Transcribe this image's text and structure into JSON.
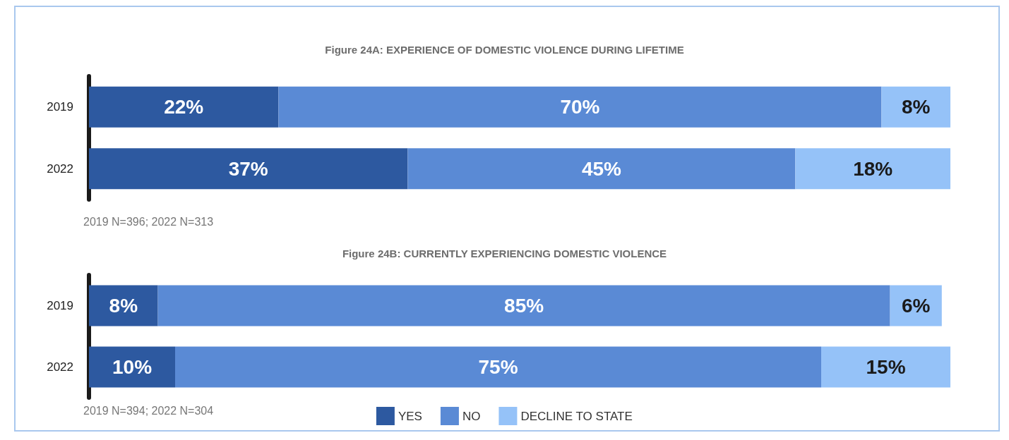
{
  "chart_data": [
    {
      "type": "bar",
      "orientation": "horizontal",
      "stacked": true,
      "title": "Figure 24A: EXPERIENCE OF DOMESTIC VIOLENCE DURING LIFETIME",
      "categories": [
        "2019",
        "2022"
      ],
      "series": [
        {
          "color": "#2d59a0",
          "values": [
            22,
            37
          ],
          "value_labels": [
            "22%",
            "37%"
          ]
        },
        {
          "color": "#5a8ad5",
          "values": [
            70,
            45
          ],
          "value_labels": [
            "70%",
            "45%"
          ]
        },
        {
          "color": "#95c2f8",
          "values": [
            8,
            18
          ],
          "value_labels": [
            "8%",
            "18%"
          ]
        }
      ],
      "tick_labels": "y",
      "grid": false,
      "legend": false,
      "annotations": [
        "2019 N=396; 2022 N=313"
      ]
    },
    {
      "type": "bar",
      "orientation": "horizontal",
      "stacked": true,
      "title": "Figure 24B: CURRENTLY EXPERIENCING DOMESTIC VIOLENCE",
      "categories": [
        "2019",
        "2022"
      ],
      "series": [
        {
          "name": "YES",
          "color": "#2d59a0",
          "values": [
            8,
            10
          ],
          "value_labels": [
            "8%",
            "10%"
          ]
        },
        {
          "name": "NO",
          "color": "#5a8ad5",
          "values": [
            85,
            75
          ],
          "value_labels": [
            "85%",
            "75%"
          ]
        },
        {
          "name": "DECLINE TO STATE",
          "color": "#95c2f8",
          "values": [
            6,
            15
          ],
          "value_labels": [
            "6%",
            "15%"
          ]
        }
      ],
      "tick_labels": "y",
      "grid": false,
      "legend": "bottom",
      "annotations": [
        "2019 N=394; 2022 N=304"
      ]
    }
  ]
}
